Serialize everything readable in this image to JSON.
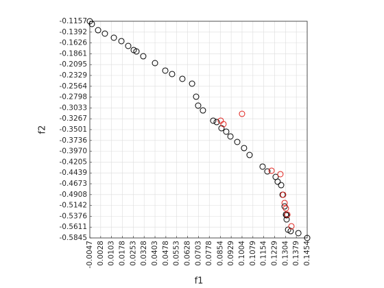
{
  "chart_data": {
    "type": "scatter",
    "xlabel": "f1",
    "ylabel": "f2",
    "xlim": [
      -0.0047,
      0.1454
    ],
    "xticks": [
      -0.0047,
      0.0028,
      0.0103,
      0.0178,
      0.0253,
      0.0328,
      0.0403,
      0.0478,
      0.0553,
      0.0628,
      0.0703,
      0.0778,
      0.0854,
      0.0929,
      0.1004,
      0.1079,
      0.1154,
      0.1229,
      0.1304,
      0.1379,
      0.1454
    ],
    "ylim": [
      -0.5845,
      -0.1157
    ],
    "yticks": [
      -0.1157,
      -0.1392,
      -0.1626,
      -0.1861,
      -0.2095,
      -0.2329,
      -0.2564,
      -0.2798,
      -0.3033,
      -0.3267,
      -0.3501,
      -0.3736,
      {
        "value": -0.397,
        "label": "-0.3970"
      },
      -0.4205,
      -0.4439,
      -0.4673,
      -0.4908,
      -0.5142,
      -0.5376,
      -0.5611,
      -0.5845
    ],
    "grid": true,
    "series": [
      {
        "color": "#000000",
        "x": [
          -0.0047,
          -0.0033,
          0.001,
          0.0057,
          0.0119,
          0.0171,
          0.0218,
          0.0256,
          0.0275,
          0.0322,
          0.0403,
          0.0474,
          0.0521,
          0.0592,
          0.0659,
          0.0687,
          0.0701,
          0.0734,
          0.0805,
          0.0829,
          0.0862,
          0.0895,
          0.0924,
          0.0971,
          0.1018,
          0.1056,
          0.1146,
          0.1179,
          0.1236,
          0.125,
          0.1274,
          0.1284,
          0.1298,
          0.1307,
          0.1312,
          0.1312,
          0.1322,
          0.134,
          0.1393,
          0.1454
        ],
        "values": [
          -0.1157,
          -0.1216,
          -0.135,
          -0.1424,
          -0.1513,
          -0.1587,
          -0.1691,
          -0.178,
          -0.181,
          -0.1914,
          -0.2062,
          -0.2225,
          -0.2299,
          -0.2403,
          -0.2507,
          -0.2789,
          -0.2982,
          -0.3086,
          -0.3308,
          -0.3338,
          -0.3471,
          -0.3545,
          -0.3649,
          -0.3768,
          -0.3901,
          -0.405,
          -0.4302,
          -0.4406,
          -0.4525,
          -0.4628,
          -0.4703,
          -0.491,
          -0.5163,
          -0.534,
          -0.5355,
          -0.5444,
          -0.5667,
          -0.5697,
          -0.5741,
          -0.5845
        ]
      },
      {
        "color": "#e0201b",
        "x": [
          0.0857,
          0.0876,
          0.1004,
          0.1208,
          0.1269,
          0.1288,
          0.1298,
          0.1307,
          0.1317,
          0.1345
        ],
        "values": [
          -0.3308,
          -0.3382,
          -0.316,
          -0.4391,
          -0.4465,
          -0.491,
          -0.5088,
          -0.5207,
          -0.534,
          -0.5592
        ]
      }
    ]
  }
}
